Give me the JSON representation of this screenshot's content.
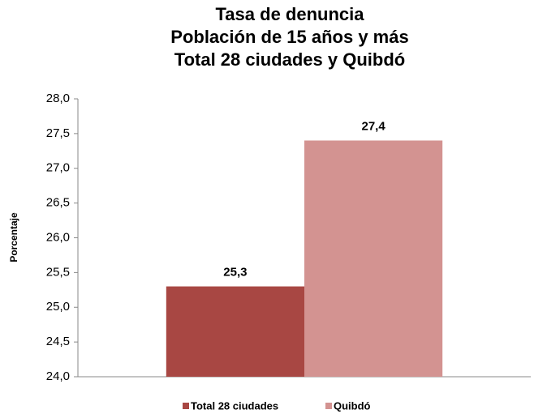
{
  "chart_data": {
    "type": "bar",
    "title": [
      "Tasa de denuncia",
      "Población de 15 años y más",
      "Total 28 ciudades y Quibdó"
    ],
    "ylabel": "Porcentaje",
    "categories": [
      null
    ],
    "series": [
      {
        "name": "Total 28 ciudades",
        "color": "#a84743",
        "values": [
          25.3
        ],
        "value_labels": [
          "25,3"
        ]
      },
      {
        "name": "Quibdó",
        "color": "#d39391",
        "values": [
          27.4
        ],
        "value_labels": [
          "27,4"
        ]
      }
    ],
    "ylim": [
      24,
      28
    ],
    "yticks": [
      {
        "value": 24,
        "label": "24,0"
      },
      {
        "value": 24.5,
        "label": "24,5"
      },
      {
        "value": 25,
        "label": "25,0"
      },
      {
        "value": 25.5,
        "label": "25,5"
      },
      {
        "value": 26,
        "label": "26,0"
      },
      {
        "value": 26.5,
        "label": "26,5"
      },
      {
        "value": 27,
        "label": "27,0"
      },
      {
        "value": 27.5,
        "label": "27,5"
      },
      {
        "value": 28,
        "label": "28,0"
      }
    ],
    "grid": false,
    "legend": "bottom"
  }
}
